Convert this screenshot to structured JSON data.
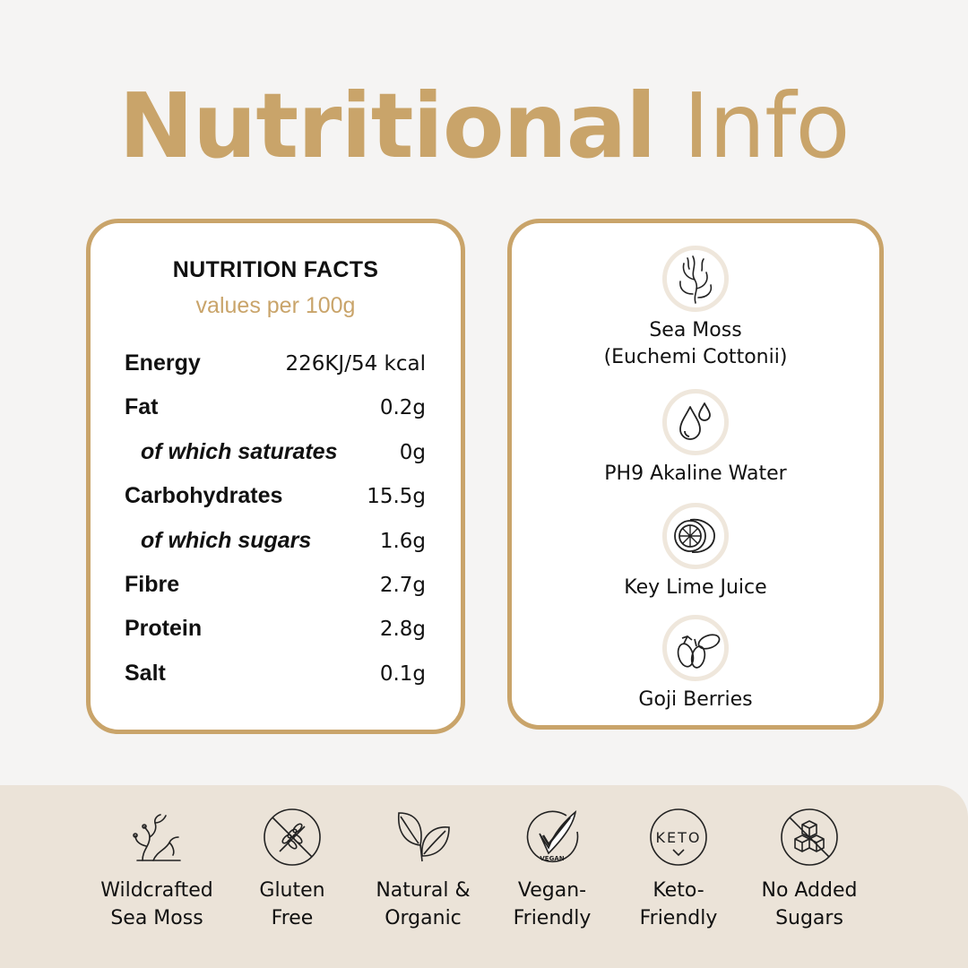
{
  "title": {
    "bold": "Nutritional",
    "light": "Info"
  },
  "nutrition": {
    "heading": "NUTRITION FACTS",
    "subheading": "values per 100g",
    "rows": [
      {
        "label": "Energy",
        "value": "226KJ/54 kcal"
      },
      {
        "label": "Fat",
        "value": "0.2g"
      },
      {
        "label": "of which saturates",
        "value": "0g"
      },
      {
        "label": "Carbohydrates",
        "value": "15.5g"
      },
      {
        "label": "of which sugars",
        "value": "1.6g"
      },
      {
        "label": "Fibre",
        "value": "2.7g"
      },
      {
        "label": "Protein",
        "value": "2.8g"
      },
      {
        "label": "Salt",
        "value": "0.1g"
      }
    ]
  },
  "ingredients": [
    {
      "name": "Sea Moss",
      "detail": "(Euchemi Cottonii)",
      "icon": "seaweed-icon"
    },
    {
      "name": "PH9 Akaline Water",
      "icon": "water-drops-icon"
    },
    {
      "name": "Key Lime Juice",
      "icon": "lime-icon"
    },
    {
      "name": "Goji Berries",
      "icon": "goji-berries-icon"
    }
  ],
  "badges": [
    {
      "line1": "Wildcrafted",
      "line2": "Sea Moss",
      "icon": "coral-icon"
    },
    {
      "line1": "Gluten",
      "line2": "Free",
      "icon": "no-wheat-icon"
    },
    {
      "line1": "Natural &",
      "line2": "Organic",
      "icon": "leaves-icon"
    },
    {
      "line1": "Vegan-",
      "line2": "Friendly",
      "icon": "vegan-check-icon",
      "icon_text": "VEGAN"
    },
    {
      "line1": "Keto-",
      "line2": "Friendly",
      "icon": "keto-icon",
      "icon_text": "KETO"
    },
    {
      "line1": "No Added",
      "line2": "Sugars",
      "icon": "no-sugar-cubes-icon"
    }
  ],
  "colors": {
    "accent": "#c9a46a",
    "background": "#f5f4f3",
    "band": "#ebe3d8",
    "text": "#111111"
  }
}
